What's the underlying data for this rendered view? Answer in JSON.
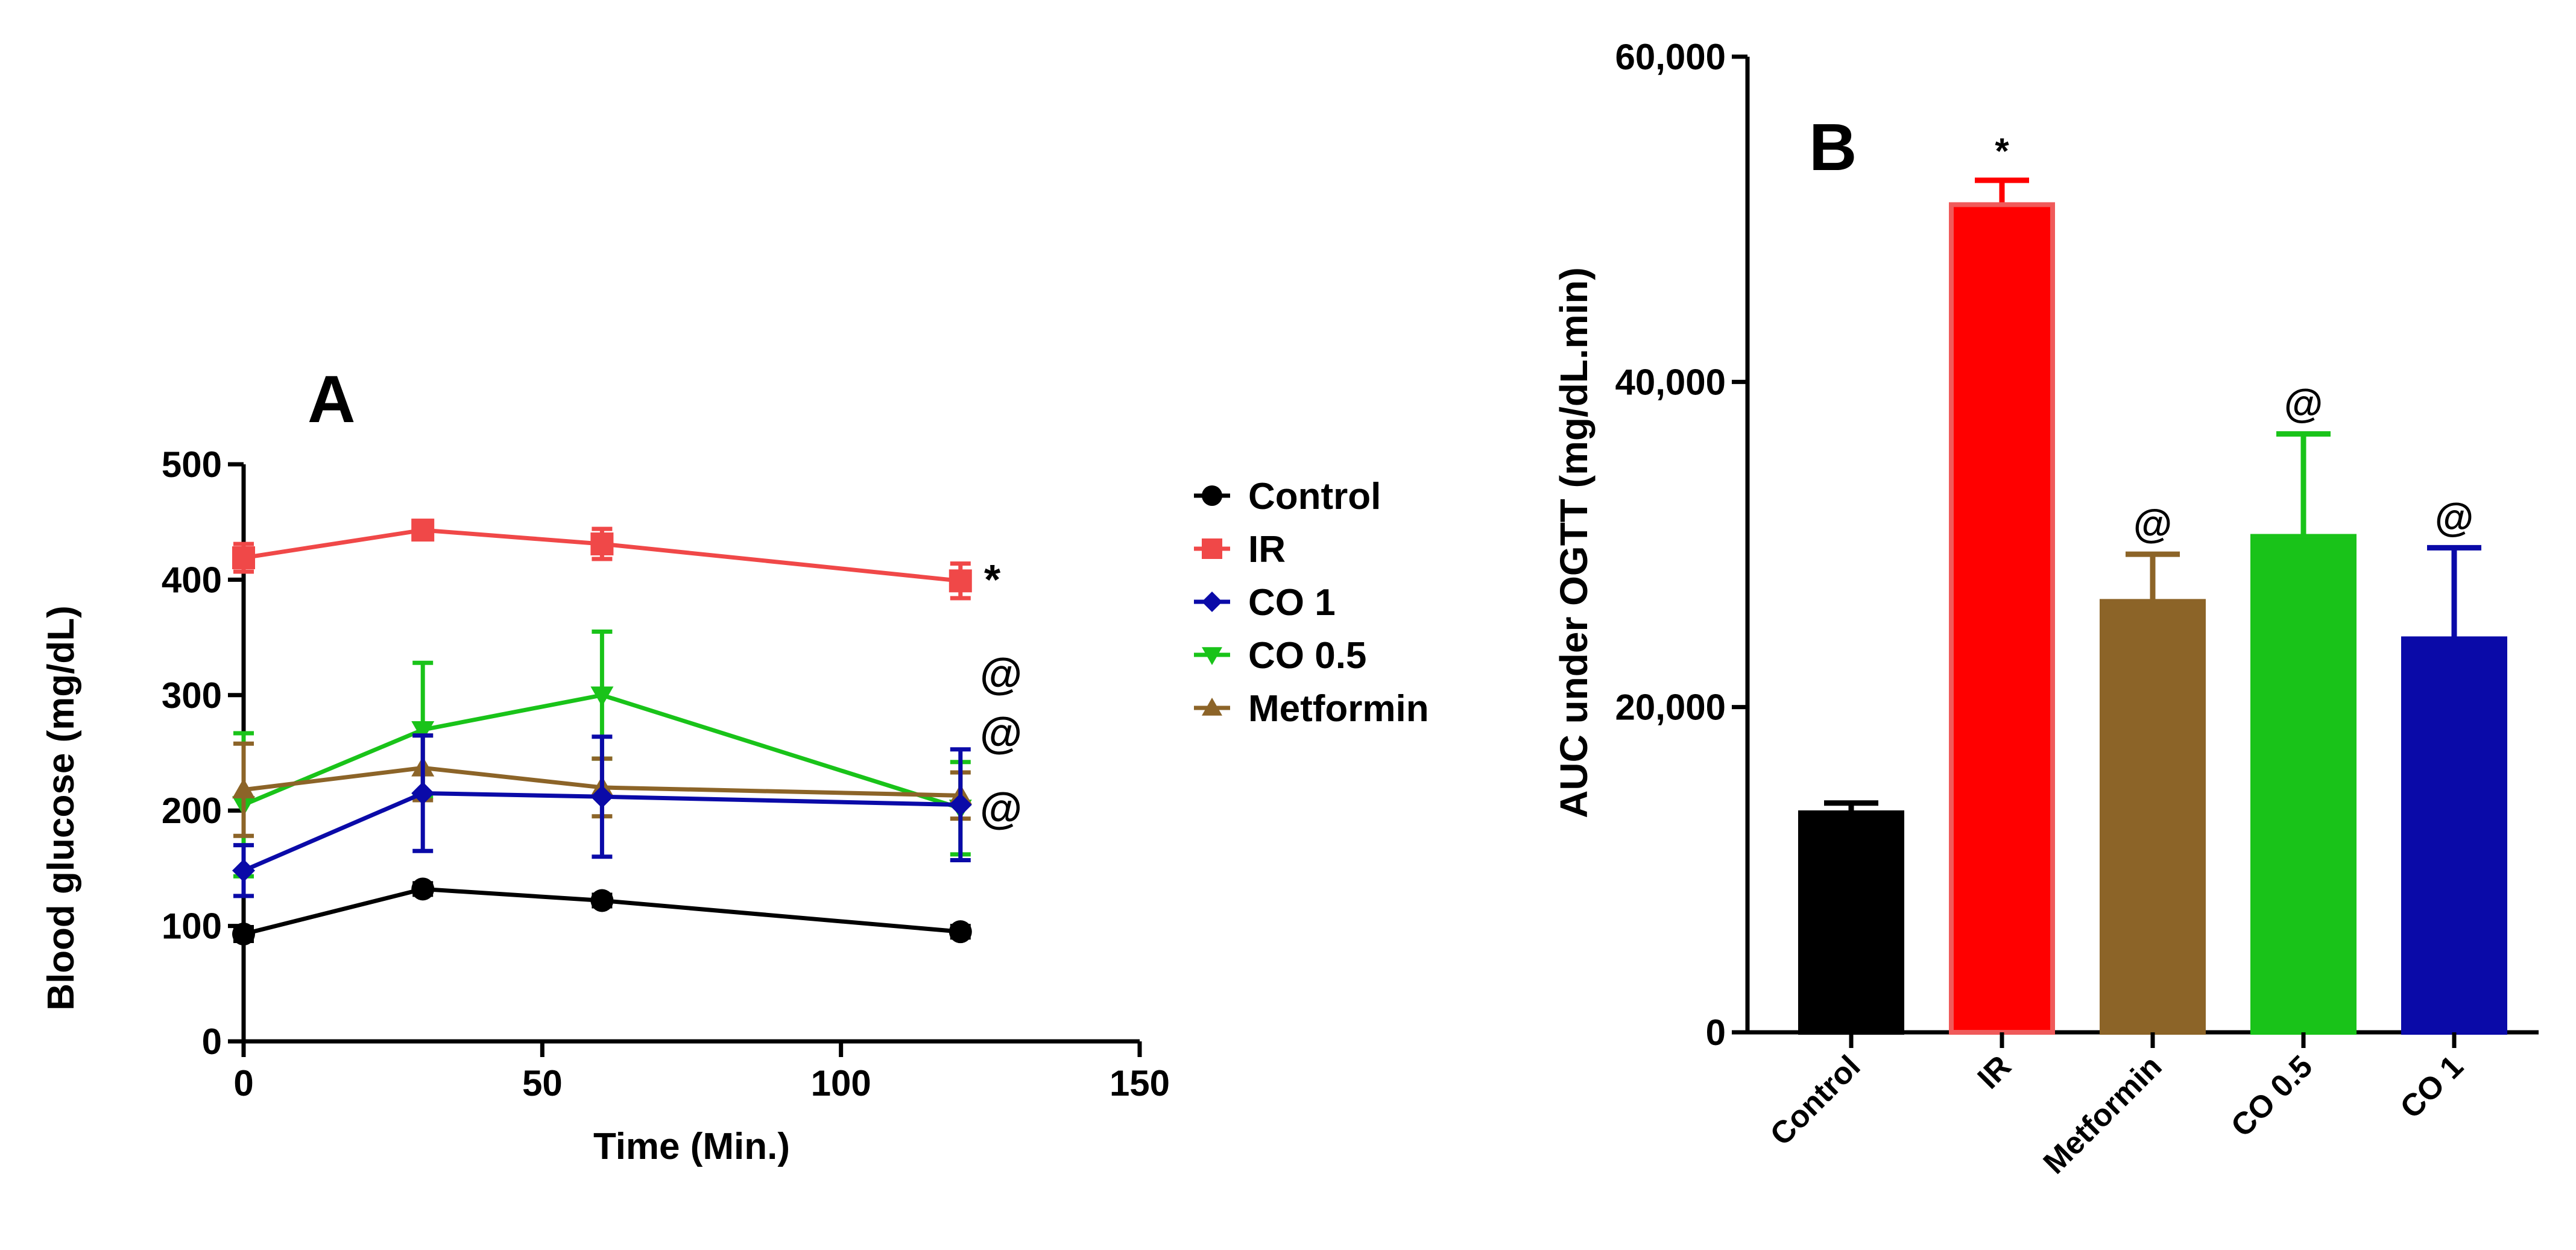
{
  "chart_data": [
    {
      "type": "line",
      "panel_label": "A",
      "xlabel": "Time (Min.)",
      "ylabel": "Blood glucose (mg/dL)",
      "xlim": [
        0,
        150
      ],
      "ylim": [
        0,
        500
      ],
      "x_ticks": [
        "0",
        "50",
        "100",
        "150"
      ],
      "y_ticks": [
        "0",
        "100",
        "200",
        "300",
        "400",
        "500"
      ],
      "x": [
        0,
        30,
        60,
        120
      ],
      "series": [
        {
          "name": "Control",
          "color": "#000000",
          "marker": "circle",
          "values": [
            93,
            132,
            122,
            95
          ],
          "errors": [
            6,
            5,
            5,
            5
          ]
        },
        {
          "name": "IR",
          "color": "#f04848",
          "marker": "square",
          "values": [
            419,
            443,
            431,
            399
          ],
          "errors": [
            12,
            8,
            13,
            15
          ]
        },
        {
          "name": "CO 1",
          "color": "#0a0aa8",
          "marker": "diamond",
          "values": [
            148,
            215,
            212,
            205
          ],
          "errors": [
            22,
            50,
            52,
            48
          ]
        },
        {
          "name": "CO 0.5",
          "color": "#19c319",
          "marker": "triangle-down",
          "values": [
            205,
            270,
            300,
            202
          ],
          "errors": [
            62,
            58,
            55,
            40
          ]
        },
        {
          "name": "Metformin",
          "color": "#8c6428",
          "marker": "triangle-up",
          "values": [
            218,
            237,
            220,
            213
          ],
          "errors": [
            40,
            28,
            25,
            20
          ]
        }
      ],
      "annotations": [
        {
          "series": "IR",
          "text": "*"
        },
        {
          "series": "CO 0.5",
          "text": "@"
        },
        {
          "series": "Metformin",
          "text": "@"
        },
        {
          "series": "CO 1",
          "text": "@"
        }
      ],
      "legend": "right"
    },
    {
      "type": "bar",
      "panel_label": "B",
      "xlabel": "",
      "ylabel": "AUC under OGTT (mg/dL.min)",
      "ylim": [
        0,
        60000
      ],
      "y_ticks": [
        "0",
        "20,000",
        "40,000",
        "60,000"
      ],
      "categories": [
        "Control",
        "IR",
        "Metformin",
        "CO 0.5",
        "CO 1"
      ],
      "values": [
        13500,
        50900,
        26500,
        30500,
        24200
      ],
      "errors": [
        600,
        1500,
        2900,
        6300,
        5600
      ],
      "colors": [
        "#000000",
        "#ff0000",
        "#8c6428",
        "#19c319",
        "#0a0aa8"
      ],
      "annotations": [
        "",
        "*",
        "@",
        "@",
        "@"
      ]
    }
  ]
}
